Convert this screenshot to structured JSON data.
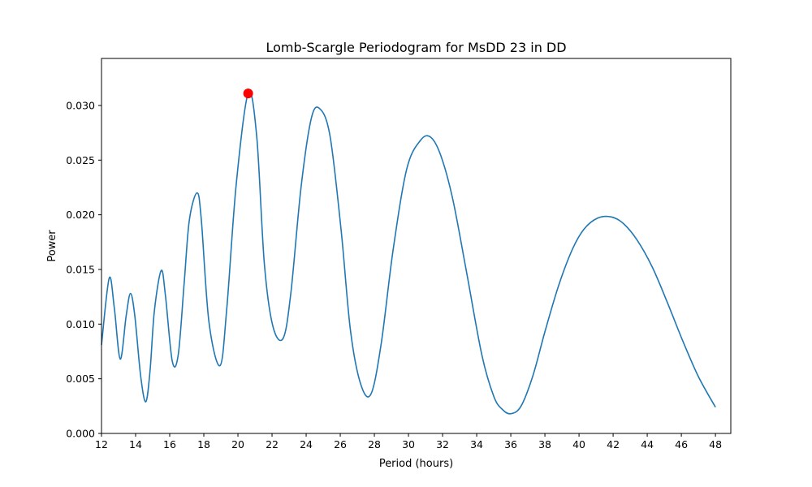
{
  "chart_data": {
    "type": "line",
    "title": "Lomb-Scargle Periodogram for MsDD 23 in DD",
    "xlabel": "Period (hours)",
    "ylabel": "Power",
    "xlim": [
      12,
      48.9
    ],
    "ylim": [
      0,
      0.0343
    ],
    "xticks": [
      12,
      14,
      16,
      18,
      20,
      22,
      24,
      26,
      28,
      30,
      32,
      34,
      36,
      38,
      40,
      42,
      44,
      46,
      48
    ],
    "xtick_labels": [
      "12",
      "14",
      "16",
      "18",
      "20",
      "22",
      "24",
      "26",
      "28",
      "30",
      "32",
      "34",
      "36",
      "38",
      "40",
      "42",
      "44",
      "46",
      "48"
    ],
    "yticks": [
      0.0,
      0.005,
      0.01,
      0.015,
      0.02,
      0.025,
      0.03
    ],
    "ytick_labels": [
      "0.000",
      "0.005",
      "0.010",
      "0.015",
      "0.020",
      "0.025",
      "0.030"
    ],
    "grid": false,
    "line_color": "#1f77b4",
    "series": [
      {
        "x": [
          12.0,
          12.45,
          12.75,
          13.1,
          13.45,
          13.7,
          13.95,
          14.3,
          14.6,
          14.85,
          15.1,
          15.5,
          15.75,
          16.15,
          16.5,
          16.85,
          17.15,
          17.6,
          17.85,
          18.3,
          18.95,
          19.35,
          19.9,
          20.6,
          21.1,
          21.55,
          22.05,
          22.65,
          23.1,
          23.7,
          24.3,
          24.8,
          25.4,
          26.05,
          26.6,
          27.2,
          27.8,
          28.4,
          29.1,
          29.9,
          30.7,
          31.3,
          31.9,
          32.6,
          33.4,
          34.3,
          35.0,
          35.5,
          36.0,
          36.6,
          37.3,
          38.0,
          38.8,
          39.6,
          40.3,
          41.1,
          41.9,
          42.6,
          43.4,
          44.3,
          45.2,
          46.1,
          47.0,
          48.0
        ],
        "y": [
          0.0081,
          0.0142,
          0.0115,
          0.0068,
          0.0108,
          0.0128,
          0.0108,
          0.0052,
          0.0029,
          0.0058,
          0.0112,
          0.0149,
          0.0126,
          0.0066,
          0.0072,
          0.0138,
          0.0195,
          0.022,
          0.0196,
          0.0102,
          0.0062,
          0.0115,
          0.0228,
          0.0311,
          0.0272,
          0.0155,
          0.0098,
          0.0087,
          0.0128,
          0.0225,
          0.0288,
          0.0297,
          0.0272,
          0.0186,
          0.0094,
          0.0045,
          0.0036,
          0.0082,
          0.0168,
          0.0242,
          0.0268,
          0.0271,
          0.0254,
          0.0214,
          0.0148,
          0.0072,
          0.0034,
          0.0022,
          0.0018,
          0.0025,
          0.0053,
          0.0093,
          0.0135,
          0.0168,
          0.0187,
          0.0197,
          0.0198,
          0.0192,
          0.0177,
          0.0152,
          0.0119,
          0.0084,
          0.0052,
          0.0024
        ]
      }
    ],
    "highlight_point": {
      "x": 20.6,
      "y": 0.0311,
      "color": "#ff0000"
    }
  }
}
